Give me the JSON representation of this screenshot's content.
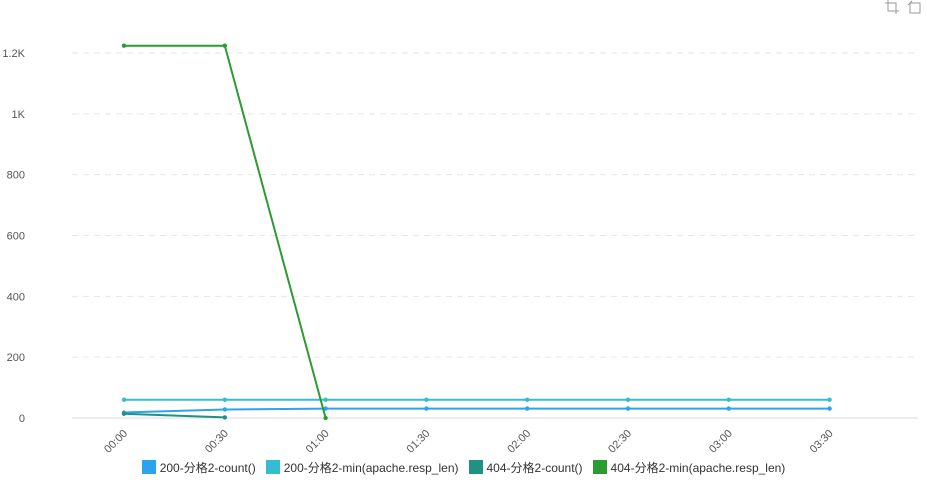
{
  "chart_data": {
    "type": "line",
    "x": [
      "00:00",
      "00:30",
      "01:00",
      "01:30",
      "02:00",
      "02:30",
      "03:00",
      "03:30"
    ],
    "ylim": [
      0,
      1300
    ],
    "yticks": [
      0,
      200,
      400,
      600,
      800,
      1000,
      1200
    ],
    "ytick_labels": [
      "0",
      "200",
      "400",
      "600",
      "800",
      "1K",
      "1.2K"
    ],
    "grid": true,
    "legend": "bottom",
    "series": [
      {
        "name": "200-分格2-count()",
        "color": "#2ba3ee",
        "values": [
          18,
          28,
          31,
          31,
          31,
          31,
          31,
          31
        ]
      },
      {
        "name": "200-分格2-min(apache.resp_len)",
        "color": "#35bcd2",
        "values": [
          60,
          60,
          60,
          60,
          60,
          60,
          60,
          60
        ]
      },
      {
        "name": "404-分格2-count()",
        "color": "#1f9285",
        "values": [
          14,
          2,
          null,
          null,
          null,
          null,
          null,
          null
        ]
      },
      {
        "name": "404-分格2-min(apache.resp_len)",
        "color": "#2a9c31",
        "values": [
          1224,
          1224,
          0,
          null,
          null,
          null,
          null,
          null
        ]
      }
    ]
  },
  "toolbar": {
    "icons": [
      "crop-icon",
      "restore-icon"
    ]
  }
}
